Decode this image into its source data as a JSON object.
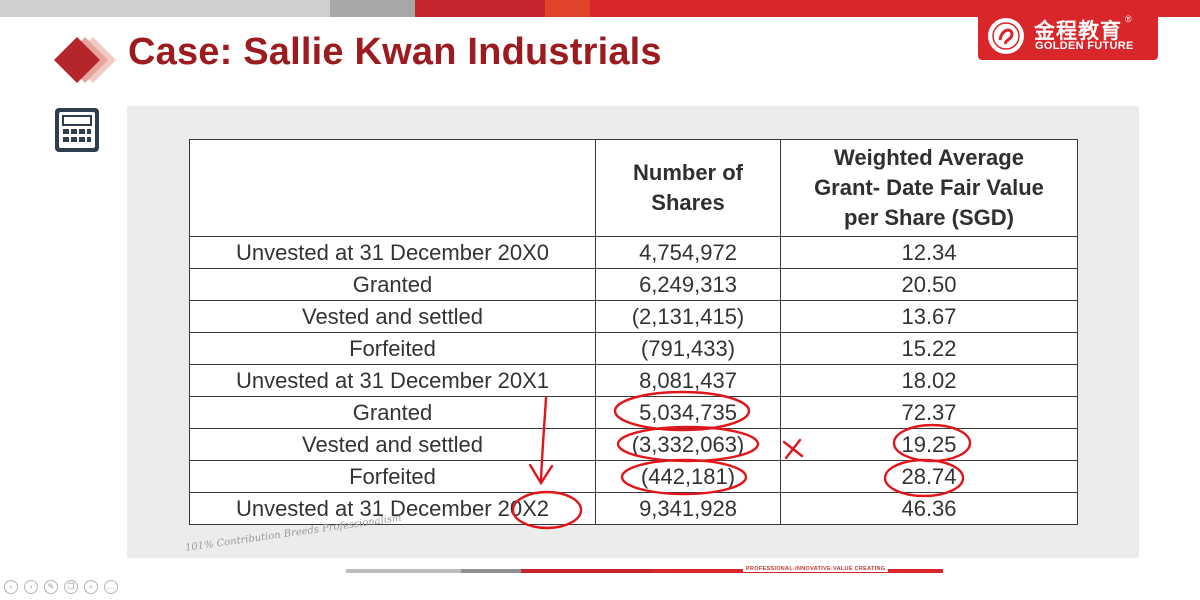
{
  "header": {
    "title": "Case: Sallie Kwan Industrials",
    "brand": {
      "name_cn": "金程教育",
      "name_en": "GOLDEN FUTURE",
      "registered": "®"
    },
    "colors": {
      "title": "#9b1b1f",
      "brand_bg": "#d9262b",
      "accent_red": "#d9262b",
      "stripe_gray": "#a7a7a7"
    }
  },
  "icons": [
    "calculator-icon",
    "diamond-logo-icon",
    "brand-seal-icon"
  ],
  "table": {
    "headers": [
      "",
      "Number of Shares",
      "Weighted Average Grant- Date Fair Value per Share (SGD)"
    ],
    "header_lines": {
      "shares": [
        "Number of",
        "Shares"
      ],
      "value": [
        "Weighted Average",
        "Grant- Date Fair Value",
        "per Share (SGD)"
      ]
    },
    "rows": [
      {
        "label": "Unvested at 31 December 20X0",
        "shares": "4,754,972",
        "value": "12.34"
      },
      {
        "label": "Granted",
        "shares": "6,249,313",
        "value": "20.50"
      },
      {
        "label": "Vested and settled",
        "shares": "(2,131,415)",
        "value": "13.67"
      },
      {
        "label": "Forfeited",
        "shares": "(791,433)",
        "value": "15.22"
      },
      {
        "label": "Unvested at 31 December 20X1",
        "shares": "8,081,437",
        "value": "18.02"
      },
      {
        "label": "Granted",
        "shares": "5,034,735",
        "value": "72.37"
      },
      {
        "label": "Vested and settled",
        "shares": "(3,332,063)",
        "value": "19.25"
      },
      {
        "label": "Forfeited",
        "shares": "(442,181)",
        "value": "28.74"
      },
      {
        "label": "Unvested at 31 December 20X2",
        "shares": "9,341,928",
        "value": "46.36"
      }
    ]
  },
  "footer": {
    "slogan_left": "101% Contribution Breeds Professionalism",
    "slogan_right": "PROFESSIONAL·INNOVATIVE·VALUE CREATING"
  },
  "player_controls": [
    "‹",
    "›",
    "✎",
    "❐",
    "⌕",
    "…"
  ]
}
